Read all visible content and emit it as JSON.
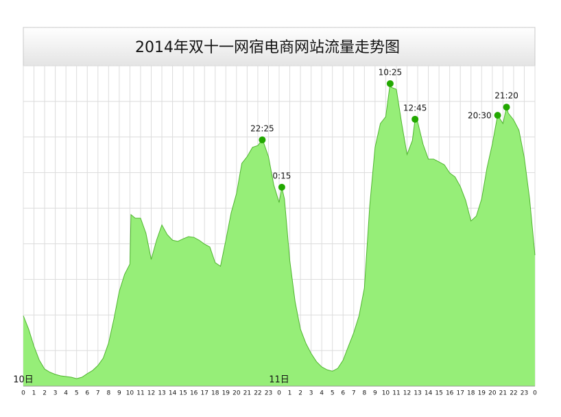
{
  "chart_data": {
    "type": "area",
    "title": "2014年双十一网宿电商网站流量走势图",
    "color": "#96ee78",
    "line_color": "#4fb52f",
    "point_color": "#22a800",
    "grid": true,
    "xlim": [
      0,
      48
    ],
    "ylim": [
      0,
      9
    ],
    "yticks": [
      0,
      1,
      2,
      3,
      4,
      5,
      6,
      7,
      8,
      9
    ],
    "xticks": [
      0,
      1,
      2,
      3,
      4,
      5,
      6,
      7,
      8,
      9,
      10,
      11,
      12,
      13,
      14,
      15,
      16,
      17,
      18,
      19,
      20,
      21,
      22,
      23,
      {
        "value": 24,
        "label": "0"
      },
      {
        "value": 25,
        "label": "1"
      },
      {
        "value": 26,
        "label": "2"
      },
      {
        "value": 27,
        "label": "3"
      },
      {
        "value": 28,
        "label": "4"
      },
      {
        "value": 29,
        "label": "5"
      },
      {
        "value": 30,
        "label": "6"
      },
      {
        "value": 31,
        "label": "7"
      },
      {
        "value": 32,
        "label": "8"
      },
      {
        "value": 33,
        "label": "9"
      },
      {
        "value": 34,
        "label": "10"
      },
      {
        "value": 35,
        "label": "11"
      },
      {
        "value": 36,
        "label": "12"
      },
      {
        "value": 37,
        "label": "13"
      },
      {
        "value": 38,
        "label": "14"
      },
      {
        "value": 39,
        "label": "15"
      },
      {
        "value": 40,
        "label": "16"
      },
      {
        "value": 41,
        "label": "17"
      },
      {
        "value": 42,
        "label": "18"
      },
      {
        "value": 43,
        "label": "19"
      },
      {
        "value": 44,
        "label": "20"
      },
      {
        "value": 45,
        "label": "21"
      },
      {
        "value": 46,
        "label": "22"
      },
      {
        "value": 47,
        "label": "23"
      },
      {
        "value": 48,
        "label": "0"
      }
    ],
    "day_labels": [
      {
        "x": 0,
        "label": "10日"
      },
      {
        "x": 24,
        "label": "11日"
      }
    ],
    "x": [
      0,
      0.5,
      1,
      1.5,
      2,
      2.5,
      3,
      3.5,
      4,
      4.5,
      5,
      5.5,
      6,
      6.5,
      7,
      7.5,
      8,
      8.5,
      9,
      9.5,
      10,
      10.1,
      10.5,
      11,
      11.5,
      12,
      12.5,
      13,
      13.5,
      14,
      14.5,
      15,
      15.5,
      16,
      16.5,
      17,
      17.5,
      18,
      18.5,
      19,
      19.5,
      20,
      20.5,
      21,
      21.5,
      22,
      22.417,
      22.5,
      23,
      23.5,
      24,
      24.25,
      24.5,
      25,
      25.5,
      26,
      26.5,
      27,
      27.5,
      28,
      28.5,
      29,
      29.5,
      30,
      30.5,
      31,
      31.5,
      32,
      32.5,
      33,
      33.5,
      34,
      34.417,
      34.5,
      35,
      35.5,
      36,
      36.5,
      36.75,
      37,
      37.5,
      38,
      38.5,
      39,
      39.5,
      40,
      40.5,
      41,
      41.5,
      42,
      42.5,
      43,
      43.5,
      44,
      44.5,
      45,
      45.333,
      45.5,
      46,
      46.5,
      47,
      47.5,
      48
    ],
    "values": [
      1.98,
      1.6,
      1.12,
      0.73,
      0.48,
      0.39,
      0.33,
      0.29,
      0.27,
      0.25,
      0.21,
      0.25,
      0.35,
      0.44,
      0.58,
      0.79,
      1.21,
      1.89,
      2.66,
      3.14,
      3.43,
      4.82,
      4.72,
      4.72,
      4.3,
      3.56,
      4.1,
      4.53,
      4.26,
      4.1,
      4.07,
      4.14,
      4.2,
      4.18,
      4.1,
      3.99,
      3.91,
      3.47,
      3.37,
      4.1,
      4.87,
      5.41,
      6.26,
      6.45,
      6.71,
      6.76,
      6.92,
      6.88,
      6.45,
      5.65,
      5.16,
      5.59,
      5.26,
      3.53,
      2.37,
      1.6,
      1.21,
      0.92,
      0.69,
      0.54,
      0.46,
      0.42,
      0.5,
      0.73,
      1.12,
      1.5,
      1.98,
      2.76,
      5.07,
      6.71,
      7.38,
      7.57,
      8.5,
      8.4,
      8.34,
      7.38,
      6.51,
      6.9,
      7.5,
      7.42,
      6.8,
      6.38,
      6.38,
      6.3,
      6.22,
      5.99,
      5.88,
      5.61,
      5.22,
      4.64,
      4.78,
      5.26,
      6.13,
      6.8,
      7.61,
      7.38,
      7.84,
      7.67,
      7.48,
      7.19,
      6.42,
      5.26,
      3.68
    ],
    "annotations": [
      {
        "x": 22.417,
        "y": 6.92,
        "label": "22:25"
      },
      {
        "x": 24.25,
        "y": 5.59,
        "label": "0:15"
      },
      {
        "x": 34.417,
        "y": 8.5,
        "label": "10:25"
      },
      {
        "x": 36.75,
        "y": 7.5,
        "label": "12:45"
      },
      {
        "x": 44.5,
        "y": 7.61,
        "label": "20:30"
      },
      {
        "x": 45.333,
        "y": 7.84,
        "label": "21:20"
      }
    ]
  }
}
